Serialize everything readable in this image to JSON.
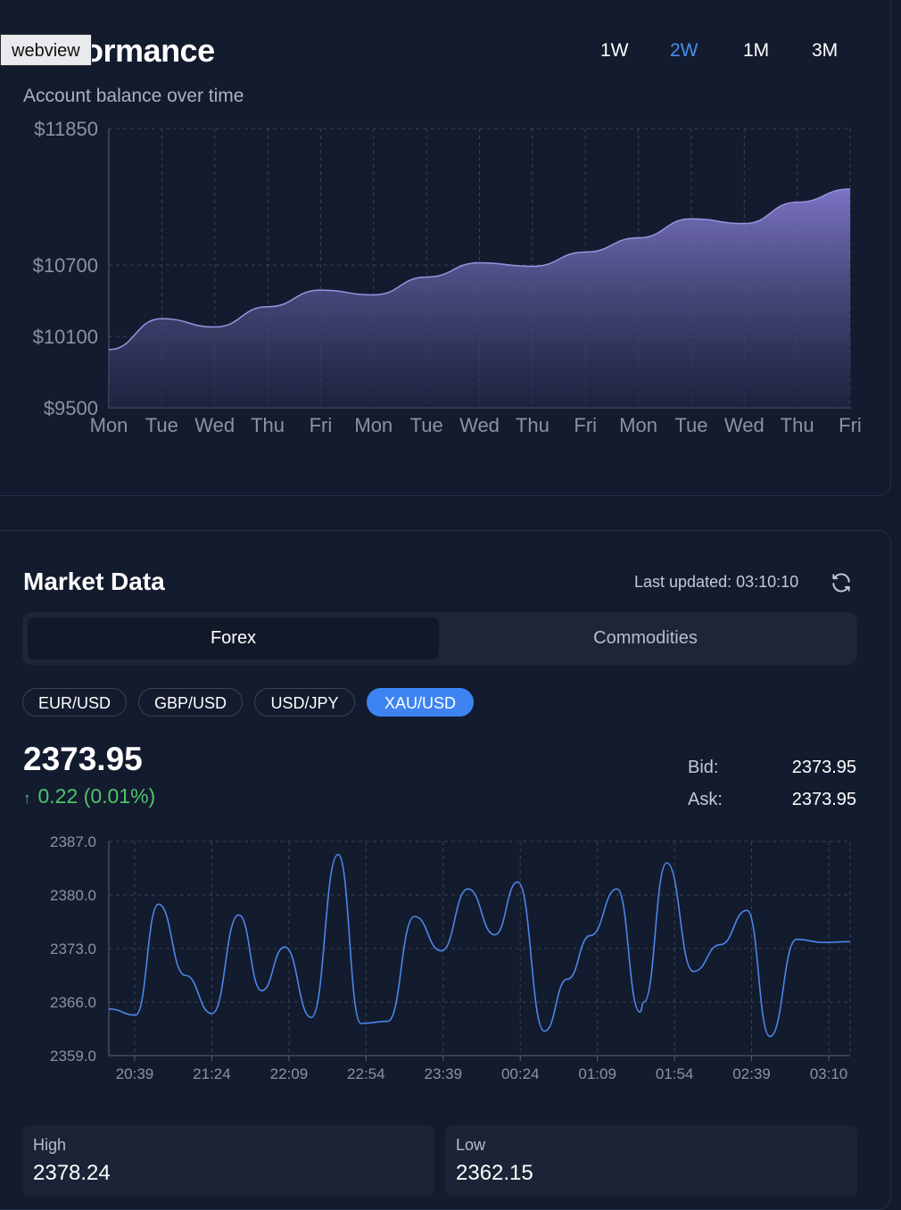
{
  "overlay": {
    "webview_label": "webview"
  },
  "performance": {
    "title": "Performance",
    "subtitle": "Account balance over time",
    "ranges": [
      "1W",
      "2W",
      "1M",
      "3M"
    ],
    "active_range": "2W"
  },
  "perf_chart_data": {
    "type": "area",
    "x": [
      "Mon",
      "Tue",
      "Wed",
      "Thu",
      "Fri",
      "Mon",
      "Tue",
      "Wed",
      "Thu",
      "Fri",
      "Mon",
      "Tue",
      "Wed",
      "Thu",
      "Fri"
    ],
    "values": [
      9990,
      10250,
      10180,
      10350,
      10490,
      10450,
      10600,
      10720,
      10690,
      10810,
      10930,
      11090,
      11050,
      11230,
      11340
    ],
    "ylim": [
      9500,
      11850
    ],
    "yticks": [
      {
        "value": 9500,
        "label": "$9500"
      },
      {
        "value": 10100,
        "label": "$10100"
      },
      {
        "value": 10700,
        "label": "$10700"
      },
      {
        "value": 11850,
        "label": "$11850"
      }
    ],
    "grid": true,
    "color": "#7d75c9"
  },
  "market": {
    "title": "Market Data",
    "last_updated": "Last updated: 03:10:10",
    "tabs": [
      "Forex",
      "Commodities"
    ],
    "active_tab": "Forex",
    "pairs": [
      "EUR/USD",
      "GBP/USD",
      "USD/JPY",
      "XAU/USD"
    ],
    "active_pair": "XAU/USD",
    "price": "2373.95",
    "change": "0.22 (0.01%)",
    "change_color": "#4cc46a",
    "bid_label": "Bid:",
    "bid": "2373.95",
    "ask_label": "Ask:",
    "ask": "2373.95",
    "high_label": "High",
    "high": "2378.24",
    "low_label": "Low",
    "low": "2362.15"
  },
  "chart_data": {
    "type": "line",
    "x": [
      "20:39",
      "21:24",
      "22:09",
      "22:54",
      "23:39",
      "00:24",
      "01:09",
      "01:54",
      "02:39",
      "03:10"
    ],
    "points": [
      [
        0,
        2365.1
      ],
      [
        0.35,
        2364.3
      ],
      [
        0.65,
        2378.8
      ],
      [
        1.0,
        2369.5
      ],
      [
        1.35,
        2364.5
      ],
      [
        1.7,
        2377.4
      ],
      [
        2.0,
        2367.5
      ],
      [
        2.3,
        2373.2
      ],
      [
        2.65,
        2364.0
      ],
      [
        3.0,
        2385.3
      ],
      [
        3.3,
        2363.2
      ],
      [
        3.65,
        2363.5
      ],
      [
        4.0,
        2377.2
      ],
      [
        4.35,
        2372.7
      ],
      [
        4.7,
        2380.8
      ],
      [
        5.05,
        2374.8
      ],
      [
        5.35,
        2381.7
      ],
      [
        5.7,
        2362.2
      ],
      [
        6.0,
        2369.0
      ],
      [
        6.3,
        2374.7
      ],
      [
        6.65,
        2380.8
      ],
      [
        6.95,
        2364.7
      ],
      [
        7.0,
        2366.0
      ],
      [
        7.3,
        2384.2
      ],
      [
        7.65,
        2370.0
      ],
      [
        8.0,
        2373.5
      ],
      [
        8.35,
        2378.0
      ],
      [
        8.65,
        2361.5
      ],
      [
        9.0,
        2374.2
      ],
      [
        9.35,
        2373.8
      ],
      [
        9.7,
        2373.9
      ]
    ],
    "ylim": [
      2359.0,
      2387.0
    ],
    "yticks": [
      "2359.0",
      "2366.0",
      "2373.0",
      "2380.0",
      "2387.0"
    ],
    "grid": true,
    "color": "#4c86e8"
  }
}
